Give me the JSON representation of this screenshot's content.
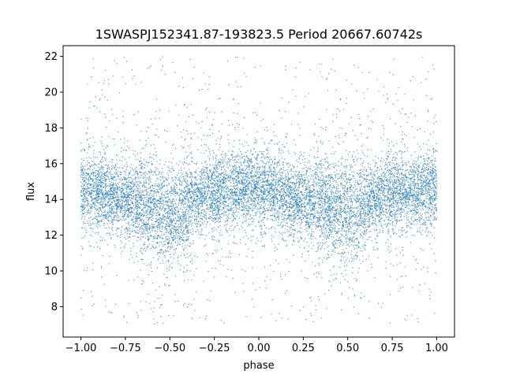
{
  "chart_data": {
    "type": "scatter",
    "title": "1SWASPJ152341.87-193823.5 Period 20667.60742s",
    "xlabel": "phase",
    "ylabel": "flux",
    "xlim": [
      -1.1,
      1.1
    ],
    "ylim": [
      6.3,
      22.6
    ],
    "xticks": [
      -1.0,
      -0.75,
      -0.5,
      -0.25,
      0.0,
      0.25,
      0.5,
      0.75,
      1.0
    ],
    "xtick_labels": [
      "−1.00",
      "−0.75",
      "−0.50",
      "−0.25",
      "0.00",
      "0.25",
      "0.50",
      "0.75",
      "1.00"
    ],
    "yticks": [
      8,
      10,
      12,
      14,
      16,
      18,
      20,
      22
    ],
    "ytick_labels": [
      "8",
      "10",
      "12",
      "14",
      "16",
      "18",
      "20",
      "22"
    ],
    "grid": false,
    "legend": "none",
    "marker_color": "#1f77b4",
    "series": [
      {
        "x_range": [
          -1.0,
          1.0
        ],
        "y_range": [
          7.0,
          22.0
        ],
        "profile": {
          "phase": [
            -1.0,
            -0.75,
            -0.5,
            -0.25,
            0.0,
            0.25,
            0.5,
            0.75,
            1.0
          ],
          "flux_center": [
            14.6,
            14.0,
            13.2,
            14.4,
            14.7,
            13.9,
            13.3,
            14.4,
            14.6
          ]
        }
      }
    ]
  }
}
